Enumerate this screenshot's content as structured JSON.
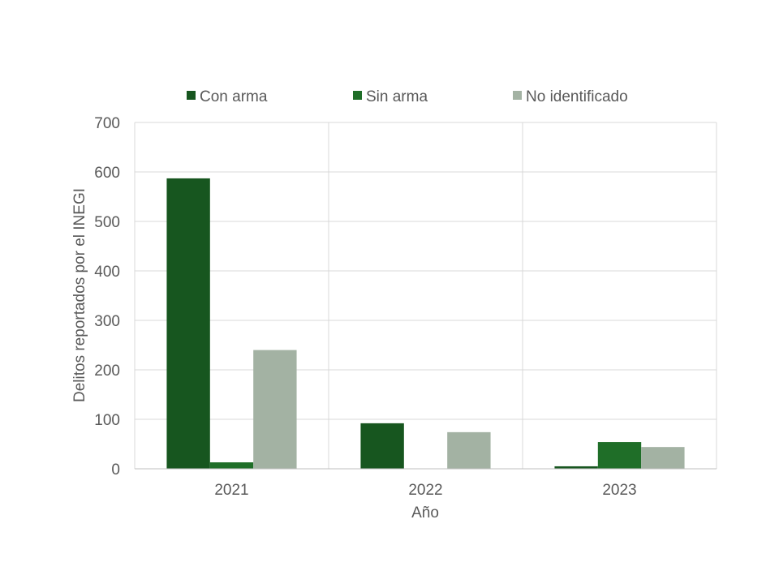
{
  "chart_data": {
    "type": "bar",
    "title": "",
    "xlabel": "Año",
    "ylabel": "Delitos reportados por el INEGI",
    "categories": [
      "2021",
      "2022",
      "2023"
    ],
    "series": [
      {
        "name": "Con arma",
        "values": [
          587,
          92,
          5
        ],
        "color": "#17561f"
      },
      {
        "name": "Sin arma",
        "values": [
          13,
          0,
          54
        ],
        "color": "#1f6e28"
      },
      {
        "name": "No identificado",
        "values": [
          240,
          74,
          44
        ],
        "color": "#a3b2a3"
      }
    ],
    "ylim": [
      0,
      700
    ],
    "yticks": [
      0,
      100,
      200,
      300,
      400,
      500,
      600,
      700
    ],
    "grid": true,
    "legend": "top"
  }
}
